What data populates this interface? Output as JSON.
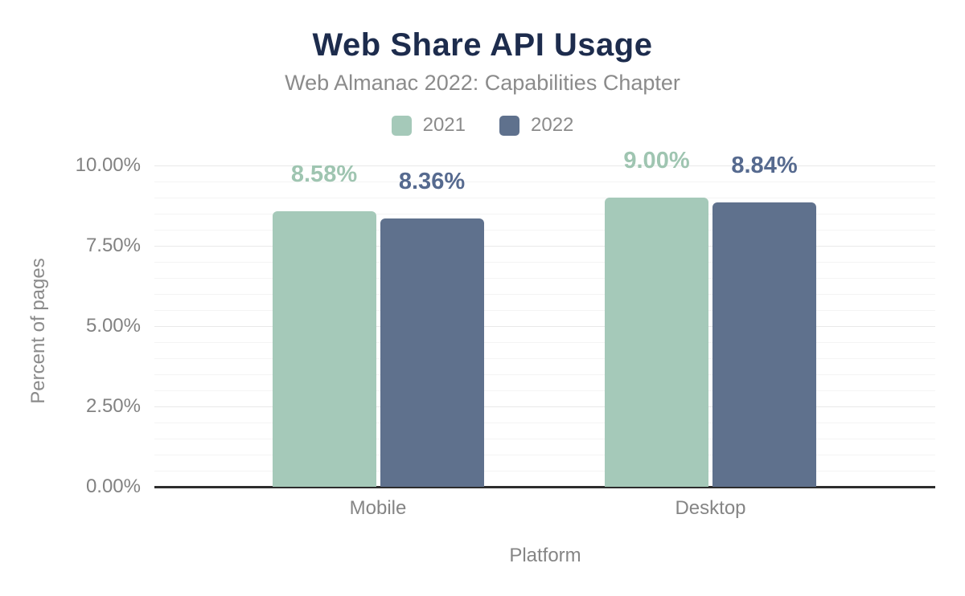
{
  "chart_data": {
    "type": "bar",
    "title": "Web Share API Usage",
    "subtitle": "Web Almanac 2022: Capabilities Chapter",
    "categories": [
      "Mobile",
      "Desktop"
    ],
    "series": [
      {
        "name": "2021",
        "color": "#a5c9b9",
        "label_color": "#9fc5b1",
        "values": [
          8.58,
          9.0
        ],
        "labels": [
          "8.58%",
          "9.00%"
        ]
      },
      {
        "name": "2022",
        "color": "#5f718d",
        "label_color": "#566a8f",
        "values": [
          8.36,
          8.84
        ],
        "labels": [
          "8.36%",
          "8.84%"
        ]
      }
    ],
    "xlabel": "Platform",
    "ylabel": "Percent of pages",
    "ylim": [
      0,
      10
    ],
    "yticks": [
      {
        "value": 0,
        "label": "0.00%"
      },
      {
        "value": 2.5,
        "label": "2.50%"
      },
      {
        "value": 5,
        "label": "5.00%"
      },
      {
        "value": 7.5,
        "label": "7.50%"
      },
      {
        "value": 10,
        "label": "10.00%"
      }
    ],
    "grid": {
      "minor_step": 0.5,
      "major_step": 2.5,
      "on": true
    },
    "legend_position": "top"
  },
  "colors": {
    "title": "#1d2c4d",
    "subtitle": "#8b8b8b",
    "axis_text": "#828282",
    "axis_line": "#2d2d2d",
    "grid_minor": "#f4f4f4",
    "grid_major": "#e9e9e9",
    "background": "#ffffff"
  }
}
